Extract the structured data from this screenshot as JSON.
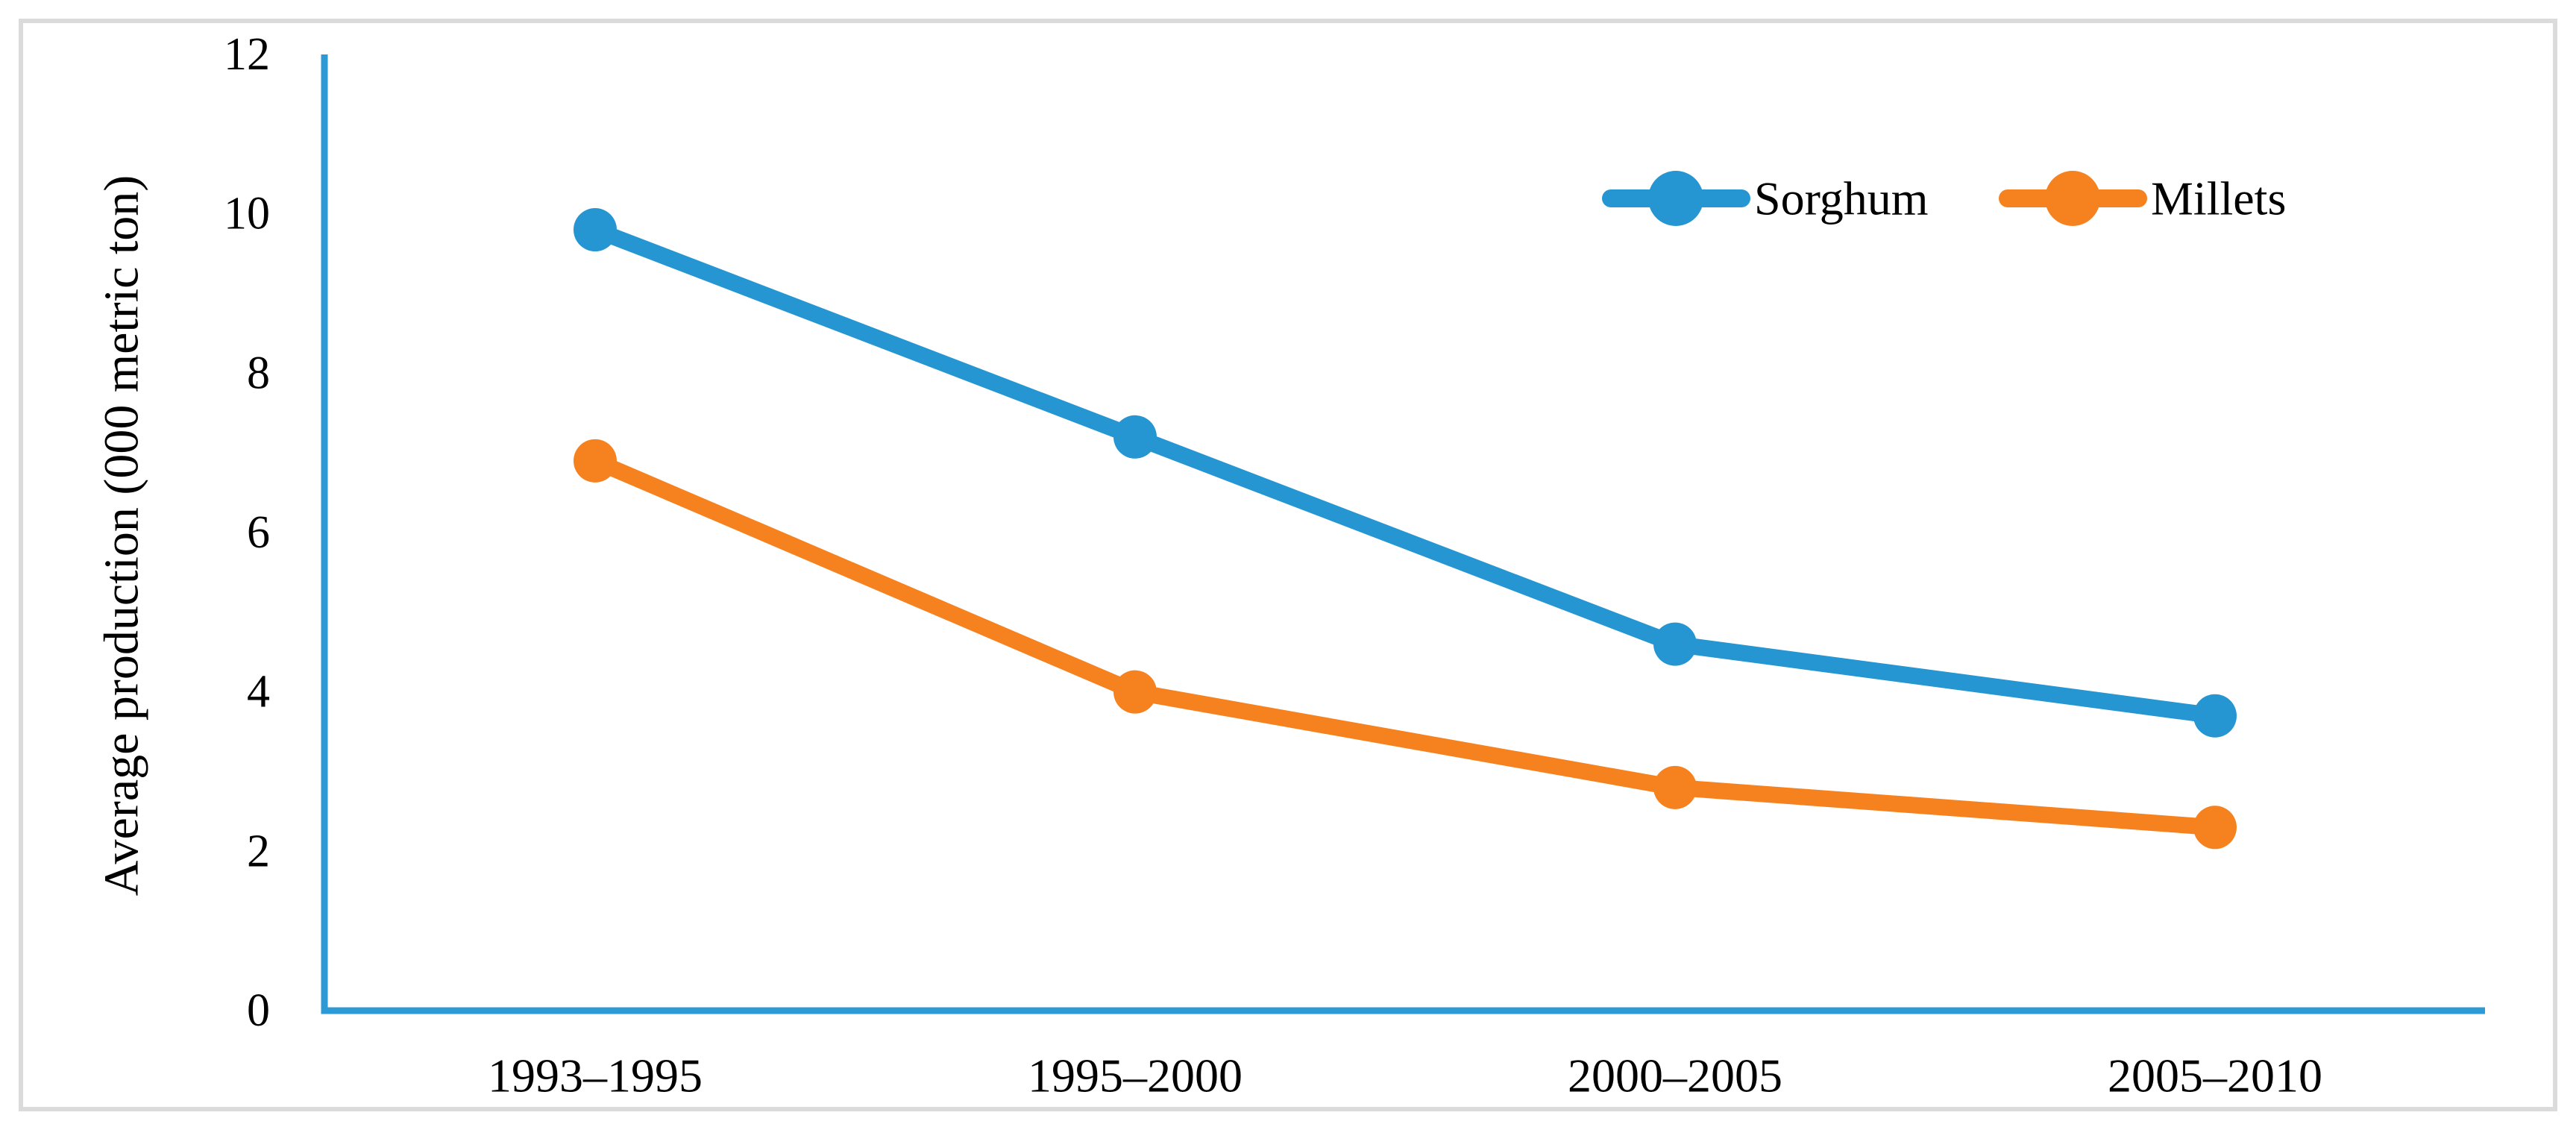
{
  "figure": {
    "frame_color": "#dbdbdb",
    "background": "#ffffff"
  },
  "chart_data": {
    "type": "line",
    "categories": [
      "1993–1995",
      "1995–2000",
      "2000–2005",
      "2005–2010"
    ],
    "series": [
      {
        "name": "Sorghum",
        "color": "#2596d1",
        "values": [
          9.8,
          7.2,
          4.6,
          3.7
        ]
      },
      {
        "name": "Millets",
        "color": "#f6821f",
        "values": [
          6.9,
          4.0,
          2.8,
          2.3
        ]
      }
    ],
    "xlabel": "",
    "ylabel": "Average production (000 metric ton)",
    "ylim": [
      0,
      12
    ],
    "yticks": [
      0,
      2,
      4,
      6,
      8,
      10,
      12
    ],
    "grid": false,
    "legend_position": "top-right",
    "axis_color": "#2e9ad5",
    "text_color": "#000000"
  }
}
